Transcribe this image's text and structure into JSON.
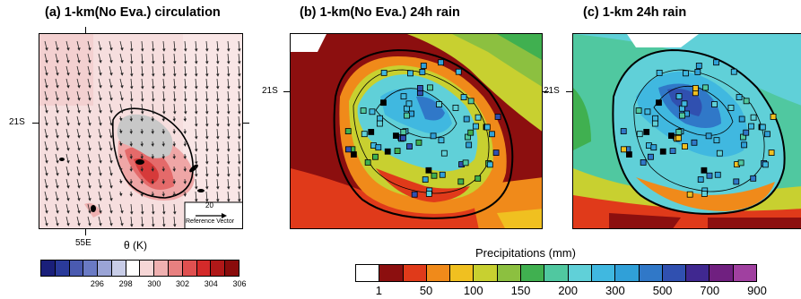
{
  "panels": [
    {
      "title": "(a) 1-km(No Eva.) circulation",
      "lat_tick": "21S",
      "lon_tick": "55E",
      "ref_vector_value": "20",
      "ref_vector_label": "Reference Vector",
      "variable_label": "θ (K)"
    },
    {
      "title": "(b) 1-km(No Eva.) 24h rain",
      "lat_tick": "21S"
    },
    {
      "title": "(c) 1-km 24h rain",
      "lat_tick": "21S"
    }
  ],
  "colorbar_theta": {
    "colors": [
      "#1a1f7a",
      "#2a3a9a",
      "#4a5ab0",
      "#6a7ac4",
      "#9aa4d6",
      "#c8cde8",
      "#ffffff",
      "#f6d6d6",
      "#efb0b0",
      "#e88080",
      "#e05050",
      "#d42a2a",
      "#b01818",
      "#8a0c0c"
    ],
    "tick_labels": [
      "296",
      "298",
      "300",
      "302",
      "304",
      "306"
    ]
  },
  "colorbar_rain": {
    "title": "Precipitations (mm)",
    "colors": [
      "#ffffff",
      "#8c0f0f",
      "#e03a1a",
      "#f08a1a",
      "#f0c020",
      "#c8d030",
      "#8cc040",
      "#40b050",
      "#50c8a0",
      "#60d0d8",
      "#40b8e0",
      "#30a0d8",
      "#3078c8",
      "#3050b0",
      "#402890",
      "#702080",
      "#a040a0"
    ],
    "tick_labels": [
      "1",
      "50",
      "100",
      "150",
      "200",
      "300",
      "500",
      "700",
      "900"
    ]
  },
  "chart_data": [
    {
      "type": "heatmap",
      "title": "(a) 1-km(No Eva.) circulation",
      "variable": "θ (K)",
      "colorbar_ticks": [
        296,
        298,
        300,
        302,
        304,
        306
      ],
      "reference_vector": 20
    },
    {
      "type": "heatmap",
      "title": "(b) 1-km(No Eva.) 24h rain",
      "colorbar": "Precipitations (mm)",
      "colorbar_ticks": [
        1,
        50,
        100,
        150,
        200,
        300,
        500,
        700,
        900
      ]
    },
    {
      "type": "heatmap",
      "title": "(c) 1-km 24h rain",
      "colorbar": "Precipitations (mm)",
      "colorbar_ticks": [
        1,
        50,
        100,
        150,
        200,
        300,
        500,
        700,
        900
      ]
    }
  ]
}
